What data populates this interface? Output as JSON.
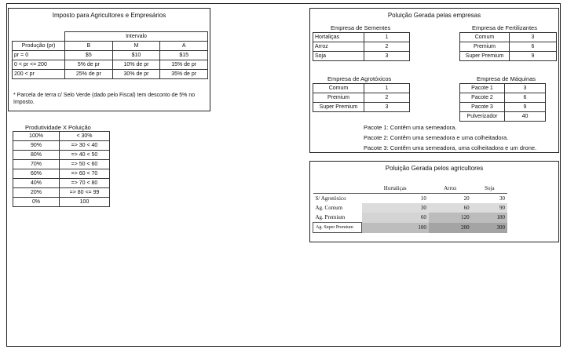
{
  "imposto": {
    "title": "Imposto para Agricultores e Empresários",
    "intervalo_label": "Intervalo",
    "headers": [
      "Produção (pr)",
      "B",
      "M",
      "A"
    ],
    "rows": [
      [
        "pr = 0",
        "$5",
        "$10",
        "$15"
      ],
      [
        "0 < pr <= 200",
        "5% de pr",
        "10% de pr",
        "15% de pr"
      ],
      [
        "200 < pr",
        "25% de pr",
        "30% de pr",
        "35% de pr"
      ]
    ],
    "note": "* Parcela de terra c/ Selo Verde (dado pelo Fiscal) tem desconto de 5% no Imposto."
  },
  "produtividade": {
    "title": "Produtividade X Poluição",
    "rows": [
      [
        "100%",
        "< 30%"
      ],
      [
        "90%",
        "=> 30 < 40"
      ],
      [
        "80%",
        "=> 40 < 50"
      ],
      [
        "70%",
        "=> 50 < 60"
      ],
      [
        "60%",
        "=> 60 < 70"
      ],
      [
        "40%",
        "=> 70 < 80"
      ],
      [
        "20%",
        "=> 80 <= 99"
      ],
      [
        "0%",
        "100"
      ]
    ]
  },
  "poluicao_empresas": {
    "title": "Poluição Gerada pelas empresas",
    "sementes": {
      "title": "Empresa de Sementes",
      "rows": [
        [
          "Hortaliças",
          "1"
        ],
        [
          "Arroz",
          "2"
        ],
        [
          "Soja",
          "3"
        ]
      ]
    },
    "fertilizantes": {
      "title": "Empresa de Fertilizantes",
      "rows": [
        [
          "Comum",
          "3"
        ],
        [
          "Premium",
          "6"
        ],
        [
          "Super Premium",
          "9"
        ]
      ]
    },
    "agrotoxicos": {
      "title": "Empresa de Agrotóxicos",
      "rows": [
        [
          "Comum",
          "1"
        ],
        [
          "Premium",
          "2"
        ],
        [
          "Super Premium",
          "3"
        ]
      ]
    },
    "maquinas": {
      "title": "Empresa de Máquinas",
      "rows": [
        [
          "Pacote 1",
          "3"
        ],
        [
          "Pacote 2",
          "6"
        ],
        [
          "Pacote 3",
          "9"
        ],
        [
          "Pulverizador",
          "40"
        ]
      ]
    },
    "pacotes": [
      "Pacote 1: Contêm uma semeadora.",
      "Pacote 2: Contêm uma semeadora e uma colheitadora.",
      "Pacote 3: Contêm uma semeadora, uma colheitadora e um drone."
    ]
  },
  "poluicao_agricultores": {
    "title": "Poluição Gerada pelos agricultores",
    "headers": [
      "Hortaliças",
      "Arroz",
      "Soja"
    ],
    "rows": [
      {
        "label": "S/ Agrotóxico",
        "values": [
          "10",
          "20",
          "30"
        ]
      },
      {
        "label": "Ag. Comum",
        "values": [
          "30",
          "60",
          "90"
        ]
      },
      {
        "label": "Ag. Premium",
        "values": [
          "60",
          "120",
          "180"
        ]
      },
      {
        "label": "Ag. Super Premium",
        "values": [
          "100",
          "200",
          "300"
        ]
      }
    ],
    "shades": [
      [
        "#ffffff",
        "#ffffff",
        "#ffffff"
      ],
      [
        "#dcdcdc",
        "#dcdcdc",
        "#dcdcdc"
      ],
      [
        "#d4d4d4",
        "#bcbcbc",
        "#bcbcbc"
      ],
      [
        "#bdbdbd",
        "#a4a4a4",
        "#a4a4a4"
      ]
    ]
  }
}
